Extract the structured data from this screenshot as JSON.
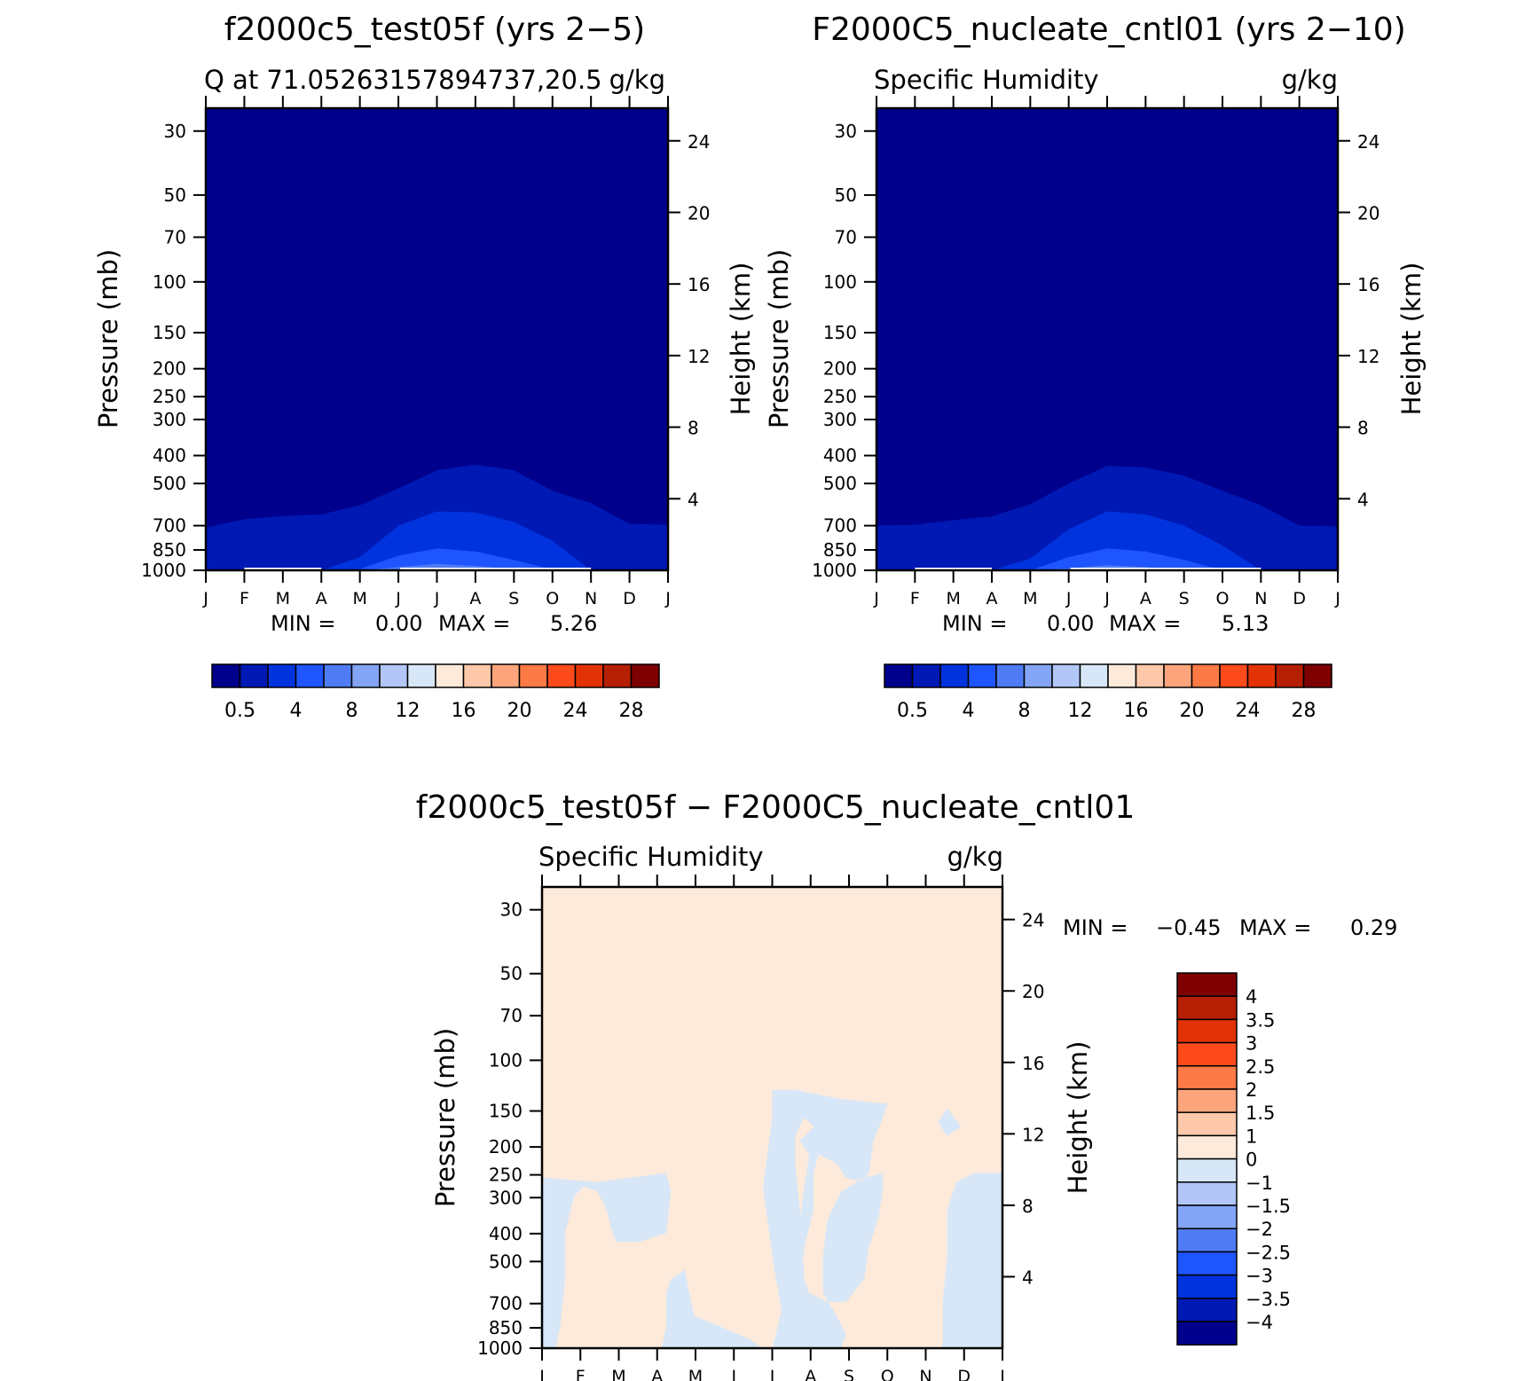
{
  "panels": [
    {
      "title": "f2000c5_test05f (yrs 2−5)",
      "left_label": "Q at 71.05263157894737,20.5",
      "right_label": "g/kg",
      "ylabel": "Pressure (mb)",
      "ylabel_right": "Height (km)",
      "minmax": {
        "min_label": "MIN =",
        "min_value": "0.00",
        "max_label": "MAX =",
        "max_value": "5.26"
      }
    },
    {
      "title": "F2000C5_nucleate_cntl01 (yrs 2−10)",
      "left_label": "Specific Humidity",
      "right_label": "g/kg",
      "ylabel": "Pressure (mb)",
      "ylabel_right": "Height (km)",
      "minmax": {
        "min_label": "MIN =",
        "min_value": "0.00",
        "max_label": "MAX =",
        "max_value": "5.13"
      }
    },
    {
      "title": "f2000c5_test05f − F2000C5_nucleate_cntl01",
      "left_label": "Specific Humidity",
      "right_label": "g/kg",
      "ylabel": "Pressure (mb)",
      "ylabel_right": "Height (km)",
      "minmax": {
        "min_label": "MIN =",
        "min_value": "−0.45",
        "max_label": "MAX =",
        "max_value": "0.29"
      }
    }
  ],
  "chart_data": [
    {
      "type": "heatmap",
      "title": "f2000c5_test05f (yrs 2−5)",
      "subtitle": "Q at 71.05263157894737,20.5",
      "units": "g/kg",
      "xlabel": "",
      "ylabel": "Pressure (mb)",
      "y2label": "Height (km)",
      "x_ticks": [
        "J",
        "F",
        "M",
        "A",
        "M",
        "J",
        "J",
        "A",
        "S",
        "O",
        "N",
        "D",
        "J"
      ],
      "y_ticks": [
        30,
        50,
        70,
        100,
        150,
        200,
        250,
        300,
        400,
        500,
        700,
        850,
        1000
      ],
      "y_scale": "log",
      "y_range": [
        1000,
        25
      ],
      "y2_ticks": [
        4,
        8,
        12,
        16,
        20,
        24
      ],
      "contour_levels": [
        0.5,
        1,
        2,
        3,
        4,
        5
      ],
      "level_tops_mb": {
        "0.5": [
          712,
          665,
          648,
          640,
          595,
          520,
          450,
          430,
          450,
          530,
          585,
          690,
          695
        ],
        "1": [
          1000,
          1000,
          1000,
          1000,
          900,
          700,
          625,
          630,
          680,
          790,
          1000,
          1000,
          1000
        ],
        "2": [
          1000,
          1000,
          1000,
          1000,
          990,
          890,
          840,
          860,
          920,
          995,
          1000,
          1000,
          1000
        ],
        "3": [
          1000,
          1000,
          1000,
          1000,
          1000,
          975,
          950,
          965,
          995,
          1000,
          1000,
          1000,
          1000
        ]
      },
      "min": 0.0,
      "max": 5.26
    },
    {
      "type": "heatmap",
      "title": "F2000C5_nucleate_cntl01 (yrs 2−10)",
      "subtitle": "Specific Humidity",
      "units": "g/kg",
      "xlabel": "",
      "ylabel": "Pressure (mb)",
      "y2label": "Height (km)",
      "x_ticks": [
        "J",
        "F",
        "M",
        "A",
        "M",
        "J",
        "J",
        "A",
        "S",
        "O",
        "N",
        "D",
        "J"
      ],
      "y_ticks": [
        30,
        50,
        70,
        100,
        150,
        200,
        250,
        300,
        400,
        500,
        700,
        850,
        1000
      ],
      "y_scale": "log",
      "y_range": [
        1000,
        25
      ],
      "y2_ticks": [
        4,
        8,
        12,
        16,
        20,
        24
      ],
      "contour_levels": [
        0.5,
        1,
        2,
        3,
        4,
        5
      ],
      "level_tops_mb": {
        "0.5": [
          700,
          695,
          670,
          650,
          590,
          500,
          435,
          440,
          470,
          530,
          595,
          700,
          705
        ],
        "1": [
          1000,
          1000,
          1000,
          1000,
          910,
          720,
          625,
          640,
          700,
          820,
          1000,
          1000,
          1000
        ],
        "2": [
          1000,
          1000,
          1000,
          1000,
          1000,
          900,
          840,
          860,
          920,
          1000,
          1000,
          1000,
          1000
        ],
        "3": [
          1000,
          1000,
          1000,
          1000,
          1000,
          985,
          960,
          975,
          1000,
          1000,
          1000,
          1000,
          1000
        ]
      },
      "min": 0.0,
      "max": 5.13
    },
    {
      "type": "heatmap",
      "title": "f2000c5_test05f − F2000C5_nucleate_cntl01",
      "subtitle": "Specific Humidity",
      "units": "g/kg",
      "xlabel": "",
      "ylabel": "Pressure (mb)",
      "y2label": "Height (km)",
      "x_ticks": [
        "J",
        "F",
        "M",
        "A",
        "M",
        "J",
        "J",
        "A",
        "S",
        "O",
        "N",
        "D",
        "J"
      ],
      "y_ticks": [
        30,
        50,
        70,
        100,
        150,
        200,
        250,
        300,
        400,
        500,
        700,
        850,
        1000
      ],
      "y_scale": "log",
      "y_range": [
        1000,
        25
      ],
      "y2_ticks": [
        4,
        8,
        12,
        16,
        20,
        24
      ],
      "contour_levels": [
        -4,
        -3.5,
        -3,
        -2.5,
        -2,
        -1.5,
        -1,
        0,
        1,
        1.5,
        2,
        2.5,
        3,
        3.5,
        4
      ],
      "min": -0.45,
      "max": 0.29
    }
  ],
  "colorbar_horizontal": {
    "colors": [
      "#00008d",
      "#0019b4",
      "#0033dd",
      "#1e55ff",
      "#4f7cf5",
      "#84a5f6",
      "#b2c7f8",
      "#d7e7f7",
      "#feeadb",
      "#fdc9aa",
      "#fca57c",
      "#fd7a46",
      "#ff4a1c",
      "#e33206",
      "#b61f03",
      "#7e0000"
    ],
    "labels": [
      "0.5",
      "4",
      "8",
      "12",
      "16",
      "20",
      "24",
      "28"
    ]
  },
  "colorbar_vertical": {
    "colors": [
      "#7e0000",
      "#b61f03",
      "#e33206",
      "#ff4a1c",
      "#fd7a46",
      "#fca57c",
      "#fdc9aa",
      "#feeadb",
      "#d7e7f7",
      "#b2c7f8",
      "#84a5f6",
      "#4f7cf5",
      "#1e55ff",
      "#0033dd",
      "#0019b4",
      "#00008d"
    ],
    "labels": [
      "4",
      "3.5",
      "3",
      "2.5",
      "2",
      "1.5",
      "1",
      "0",
      "−1",
      "−1.5",
      "−2",
      "−2.5",
      "−3",
      "−3.5",
      "−4"
    ]
  }
}
